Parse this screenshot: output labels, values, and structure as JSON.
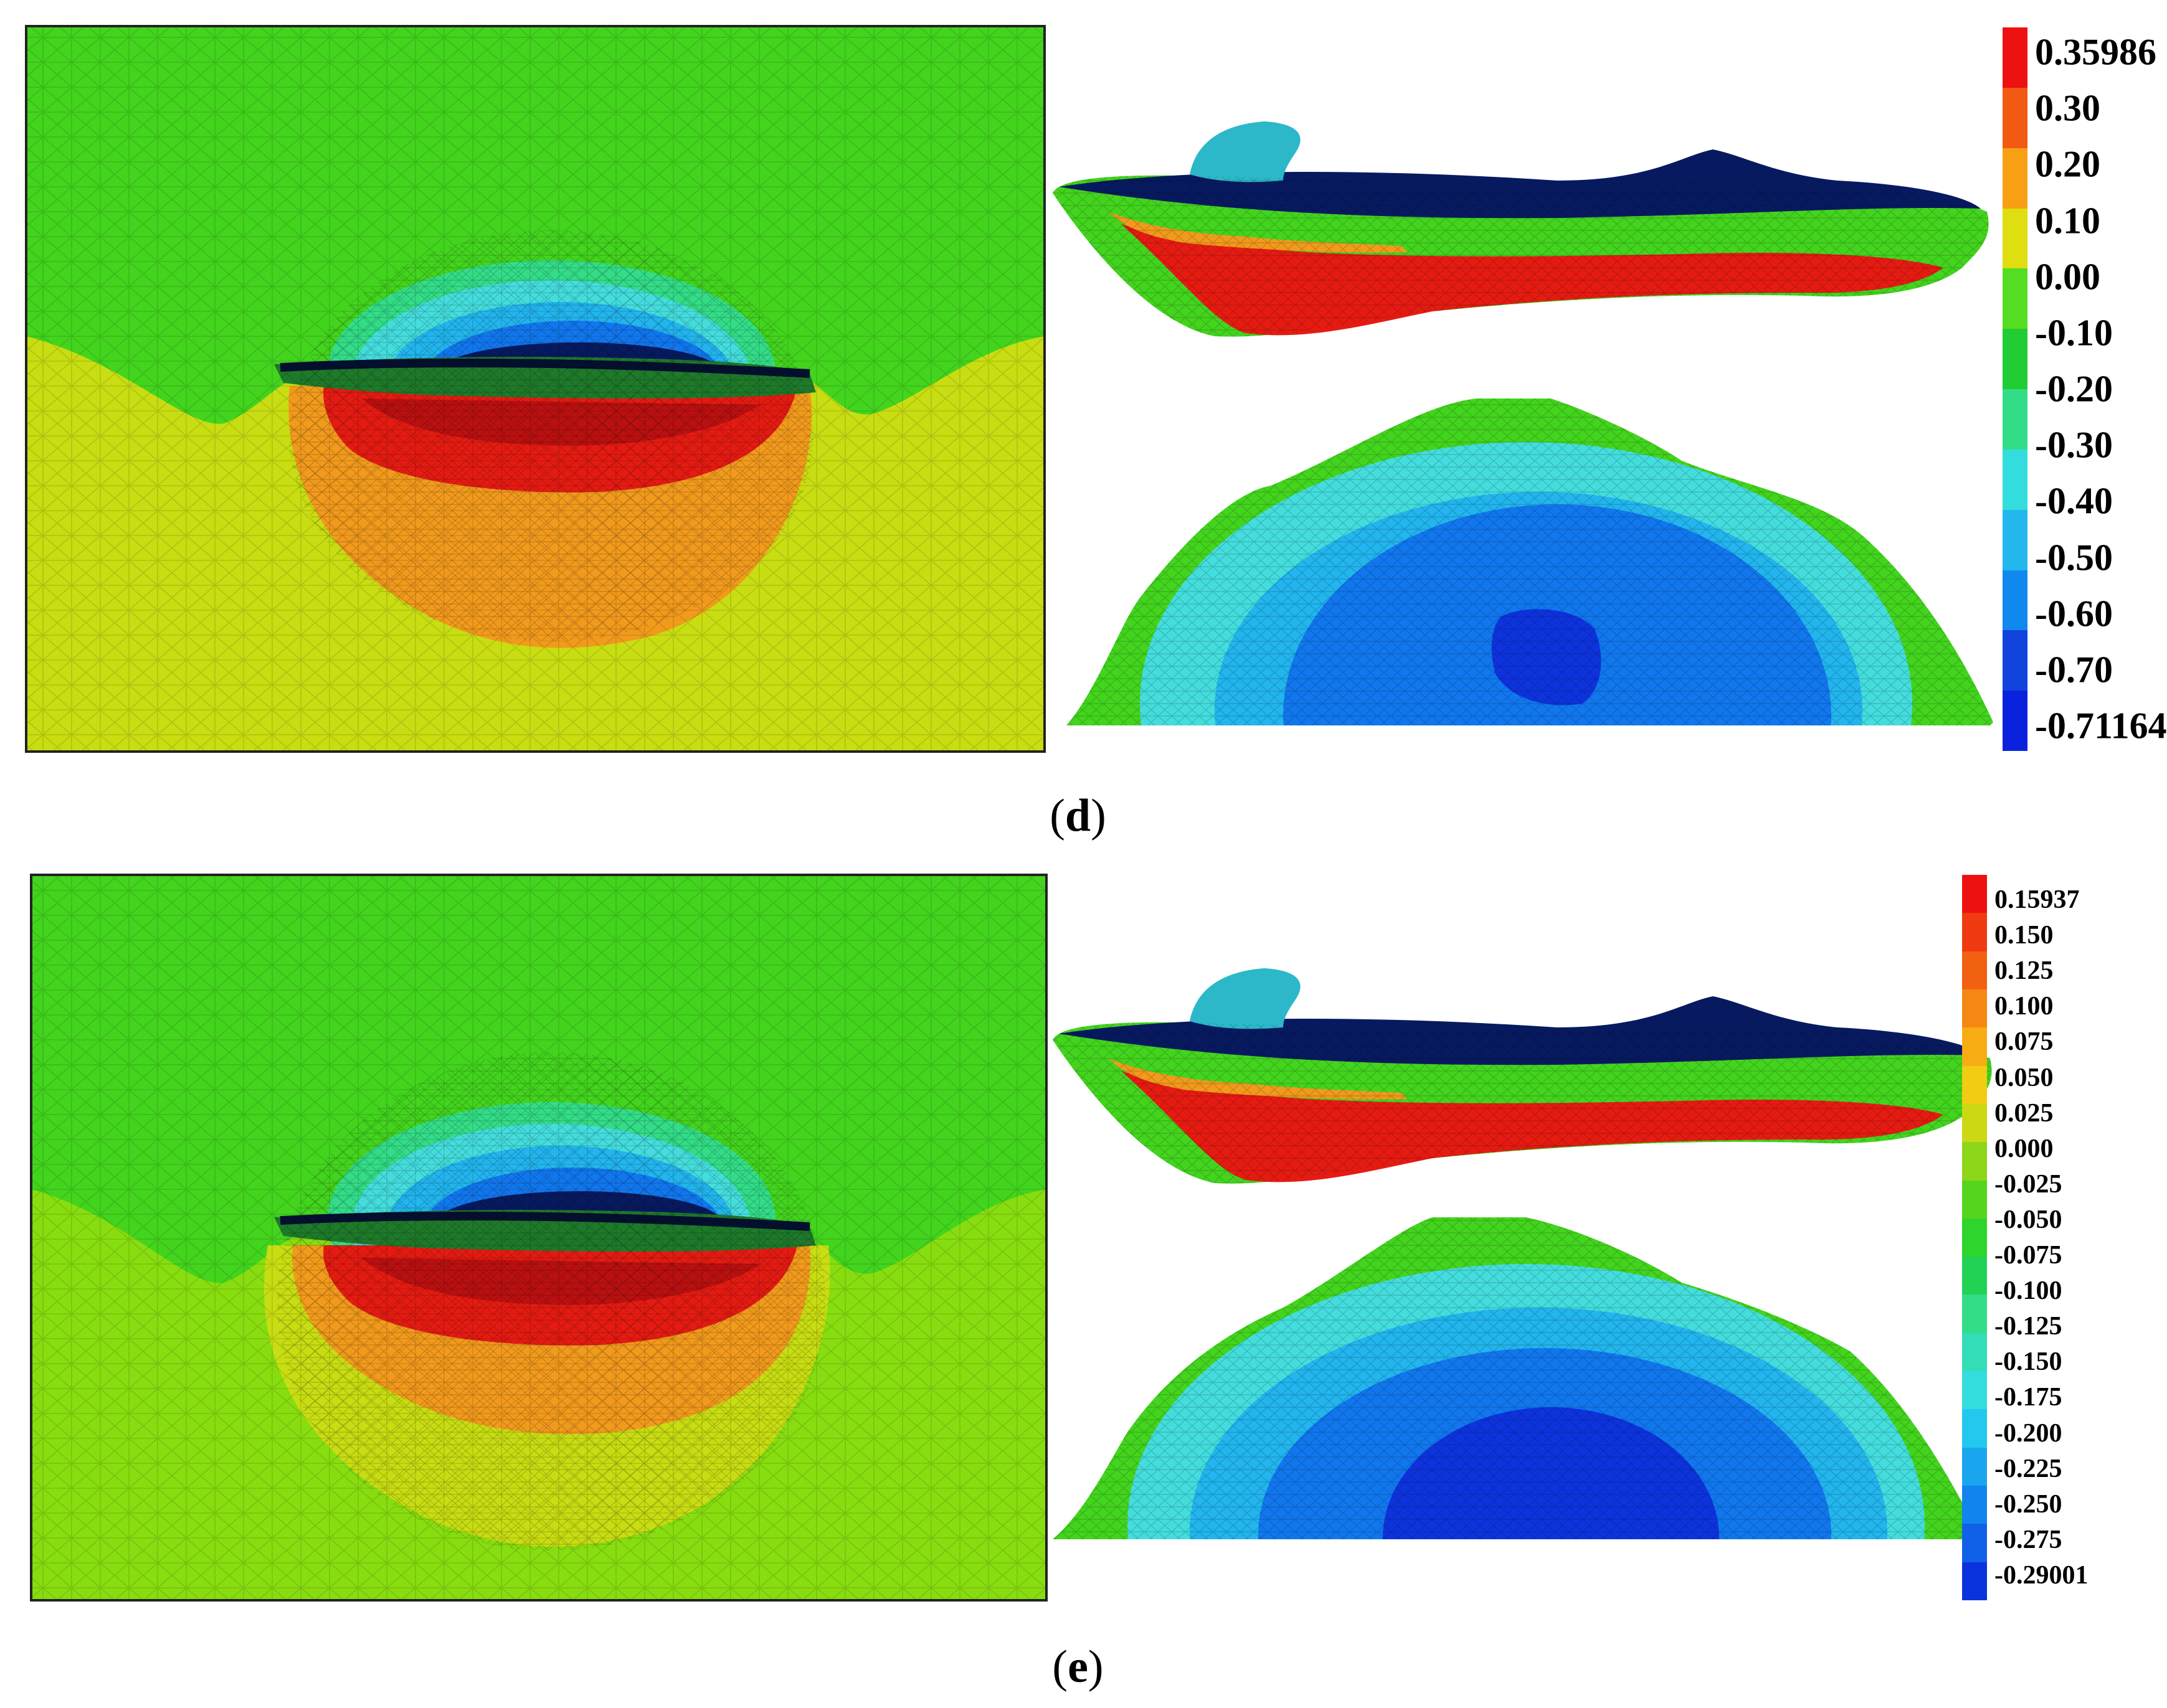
{
  "panels": [
    {
      "id": "d",
      "caption": "d",
      "colorbar": {
        "labels": [
          "0.35986",
          "0.30",
          "0.20",
          "0.10",
          "0.00",
          "-0.10",
          "-0.20",
          "-0.30",
          "-0.40",
          "-0.50",
          "-0.60",
          "-0.70",
          "-0.71164"
        ],
        "colors": [
          "#ee1111",
          "#f25a12",
          "#f7a014",
          "#dede10",
          "#55dd22",
          "#22cc33",
          "#33dd88",
          "#33dddd",
          "#22b8ee",
          "#1188ee",
          "#1144dd",
          "#0a22dd"
        ]
      }
    },
    {
      "id": "e",
      "caption": "e",
      "colorbar": {
        "labels": [
          "0.15937",
          "0.150",
          "0.125",
          "0.100",
          "0.075",
          "0.050",
          "0.025",
          "0.000",
          "-0.025",
          "-0.050",
          "-0.075",
          "-0.100",
          "-0.125",
          "-0.150",
          "-0.175",
          "-0.200",
          "-0.225",
          "-0.250",
          "-0.275",
          "-0.29001"
        ],
        "colors": [
          "#ee1111",
          "#f03a11",
          "#f26012",
          "#f58814",
          "#f7ac14",
          "#f2cc12",
          "#ccd814",
          "#8ed61a",
          "#55d51e",
          "#2ed52c",
          "#22d255",
          "#33dd88",
          "#33ddb8",
          "#33dddd",
          "#22c8ee",
          "#1aa6ee",
          "#1184ee",
          "#1160e8",
          "#0a33dd"
        ]
      }
    }
  ],
  "colors": {
    "green": "#43d41e",
    "yellow": "#c8dd12",
    "lime": "#88dd10",
    "orange": "#f19a1c",
    "red": "#e51b12",
    "dark_red": "#bb1010",
    "cyan": "#44dddd",
    "light_blue": "#22b5ee",
    "blue": "#1177ee",
    "deep_blue": "#0d33dd",
    "navy": "#071a60"
  }
}
